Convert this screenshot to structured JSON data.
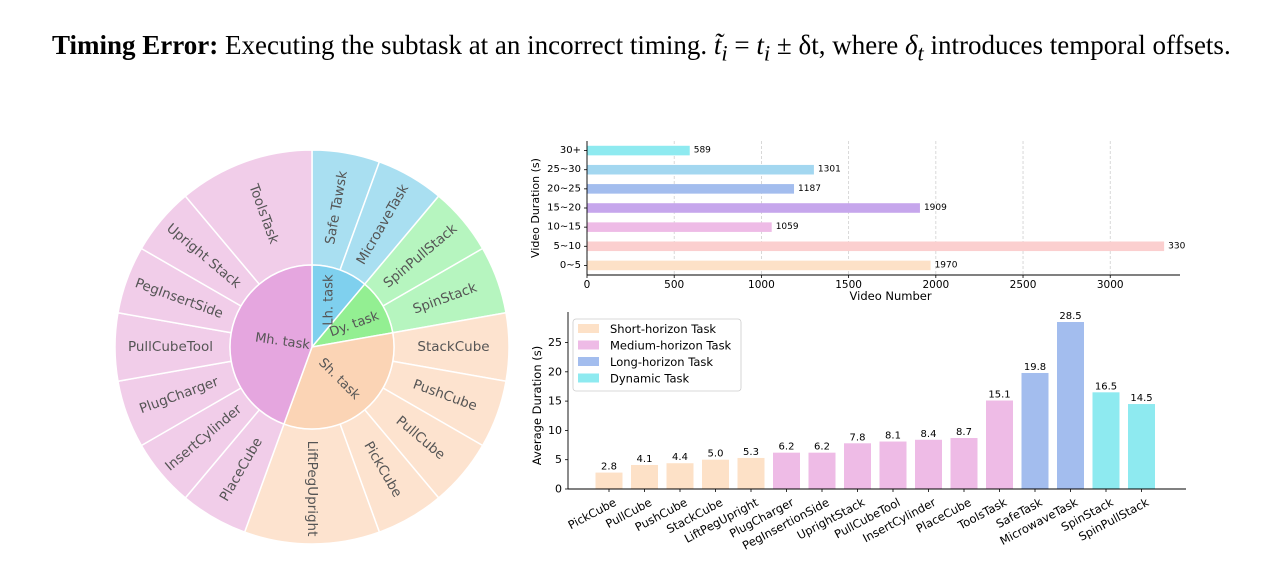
{
  "caption": {
    "heading": "Timing Error:",
    "sentence": "Executing the subtask at an incorrect timing.",
    "formula_lhs": "t̃",
    "formula_sub": "i",
    "formula_eq": " = ",
    "formula_t": "t",
    "formula_pm": " ± δt",
    "rest": ", where ",
    "delta": "δ",
    "delta_sub": "t",
    "tail": " introduces temporal offsets."
  },
  "colors": {
    "short": "#fde1c7",
    "medium": "#eebbe6",
    "long": "#a3bdee",
    "dynamic": "#8eeaf0",
    "sun_short_outer": "#fde3cf",
    "sun_medium_outer": "#f1cde9",
    "sun_long_outer": "#a9dff1",
    "sun_dyn_outer": "#b6f5bf",
    "sun_short_inner": "#fbd4b5",
    "sun_medium_inner": "#e5a6df",
    "sun_long_inner": "#7fd0ee",
    "sun_dyn_inner": "#93ef92"
  },
  "chart_data": [
    {
      "type": "sunburst",
      "inner": [
        {
          "label": "Lh. task",
          "group": "long",
          "start": 0,
          "end": 40
        },
        {
          "label": "Dy. task",
          "group": "dyn",
          "start": 40,
          "end": 80
        },
        {
          "label": "Sh. task",
          "group": "short",
          "start": 80,
          "end": 200
        },
        {
          "label": "Mh. task",
          "group": "medium",
          "start": 200,
          "end": 360
        }
      ],
      "outer": [
        {
          "label": "Safe Tawsk",
          "group": "long",
          "start": 0,
          "end": 20
        },
        {
          "label": "MicroaveTask",
          "group": "long",
          "start": 20,
          "end": 40
        },
        {
          "label": "SpinPullStack",
          "group": "dyn",
          "start": 40,
          "end": 60
        },
        {
          "label": "SpinStack",
          "group": "dyn",
          "start": 60,
          "end": 80
        },
        {
          "label": "StackCube",
          "group": "short",
          "start": 80,
          "end": 100
        },
        {
          "label": "PushCube",
          "group": "short",
          "start": 100,
          "end": 120
        },
        {
          "label": "PullCube",
          "group": "short",
          "start": 120,
          "end": 140
        },
        {
          "label": "PickCube",
          "group": "short",
          "start": 140,
          "end": 160
        },
        {
          "label": "LiftPegUpright",
          "group": "short",
          "start": 160,
          "end": 200
        },
        {
          "label": "PlaceCube",
          "group": "medium",
          "start": 200,
          "end": 220
        },
        {
          "label": "InsertCylinder",
          "group": "medium",
          "start": 220,
          "end": 240
        },
        {
          "label": "PlugCharger",
          "group": "medium",
          "start": 240,
          "end": 260
        },
        {
          "label": "PullCubeTool",
          "group": "medium",
          "start": 260,
          "end": 280
        },
        {
          "label": "PegInsertSide",
          "group": "medium",
          "start": 280,
          "end": 300
        },
        {
          "label": "Upright Stack",
          "group": "medium",
          "start": 300,
          "end": 320
        },
        {
          "label": "ToolsTask",
          "group": "medium",
          "start": 320,
          "end": 360
        }
      ]
    },
    {
      "type": "bar",
      "orientation": "horizontal",
      "categories": [
        "0~5",
        "5~10",
        "10~15",
        "15~20",
        "20~25",
        "25~30",
        "30+"
      ],
      "values": [
        1970,
        3309,
        1059,
        1909,
        1187,
        1301,
        589
      ],
      "bar_colors": [
        "#fde1c7",
        "#fbcfcf",
        "#eebbe6",
        "#c6a6ec",
        "#a3bdee",
        "#a3d7f0",
        "#8eeaf0"
      ],
      "xlabel": "Video Number",
      "ylabel": "Video Duration (s)",
      "xlim": [
        0,
        3400
      ],
      "xticks": [
        0,
        500,
        1000,
        1500,
        2000,
        2500,
        3000
      ],
      "grid": "vertical"
    },
    {
      "type": "bar",
      "categories": [
        "PickCube",
        "PullCube",
        "PushCube",
        "StackCube",
        "LiftPegUpright",
        "PlugCharger",
        "PegInsertionSide",
        "UprightStack",
        "PullCubeTool",
        "InsertCylinder",
        "PlaceCube",
        "ToolsTask",
        "SafeTask",
        "MicrowaveTask",
        "SpinStack",
        "SpinPullStack"
      ],
      "values": [
        2.8,
        4.1,
        4.4,
        5.0,
        5.3,
        6.2,
        6.2,
        7.8,
        8.1,
        8.4,
        8.7,
        15.1,
        19.8,
        28.5,
        16.5,
        14.5
      ],
      "value_labels": [
        "2.8",
        "4.1",
        "4.4",
        "5.0",
        "5.3",
        "6.2",
        "6.2",
        "7.8",
        "8.1",
        "8.4",
        "8.7",
        "15.1",
        "19.8",
        "28.5",
        "16.5",
        "14.5"
      ],
      "groups": [
        "short",
        "short",
        "short",
        "short",
        "short",
        "medium",
        "medium",
        "medium",
        "medium",
        "medium",
        "medium",
        "medium",
        "long",
        "long",
        "dynamic",
        "dynamic"
      ],
      "ylabel": "Average Duration (s)",
      "ylim": [
        0,
        28.5
      ],
      "yticks": [
        0,
        5,
        10,
        15,
        20,
        25
      ],
      "legend": [
        {
          "name": "Short-horizon Task",
          "group": "short"
        },
        {
          "name": "Medium-horizon Task",
          "group": "medium"
        },
        {
          "name": "Long-horizon Task",
          "group": "long"
        },
        {
          "name": "Dynamic Task",
          "group": "dynamic"
        }
      ],
      "legend_position": "top-left"
    }
  ]
}
